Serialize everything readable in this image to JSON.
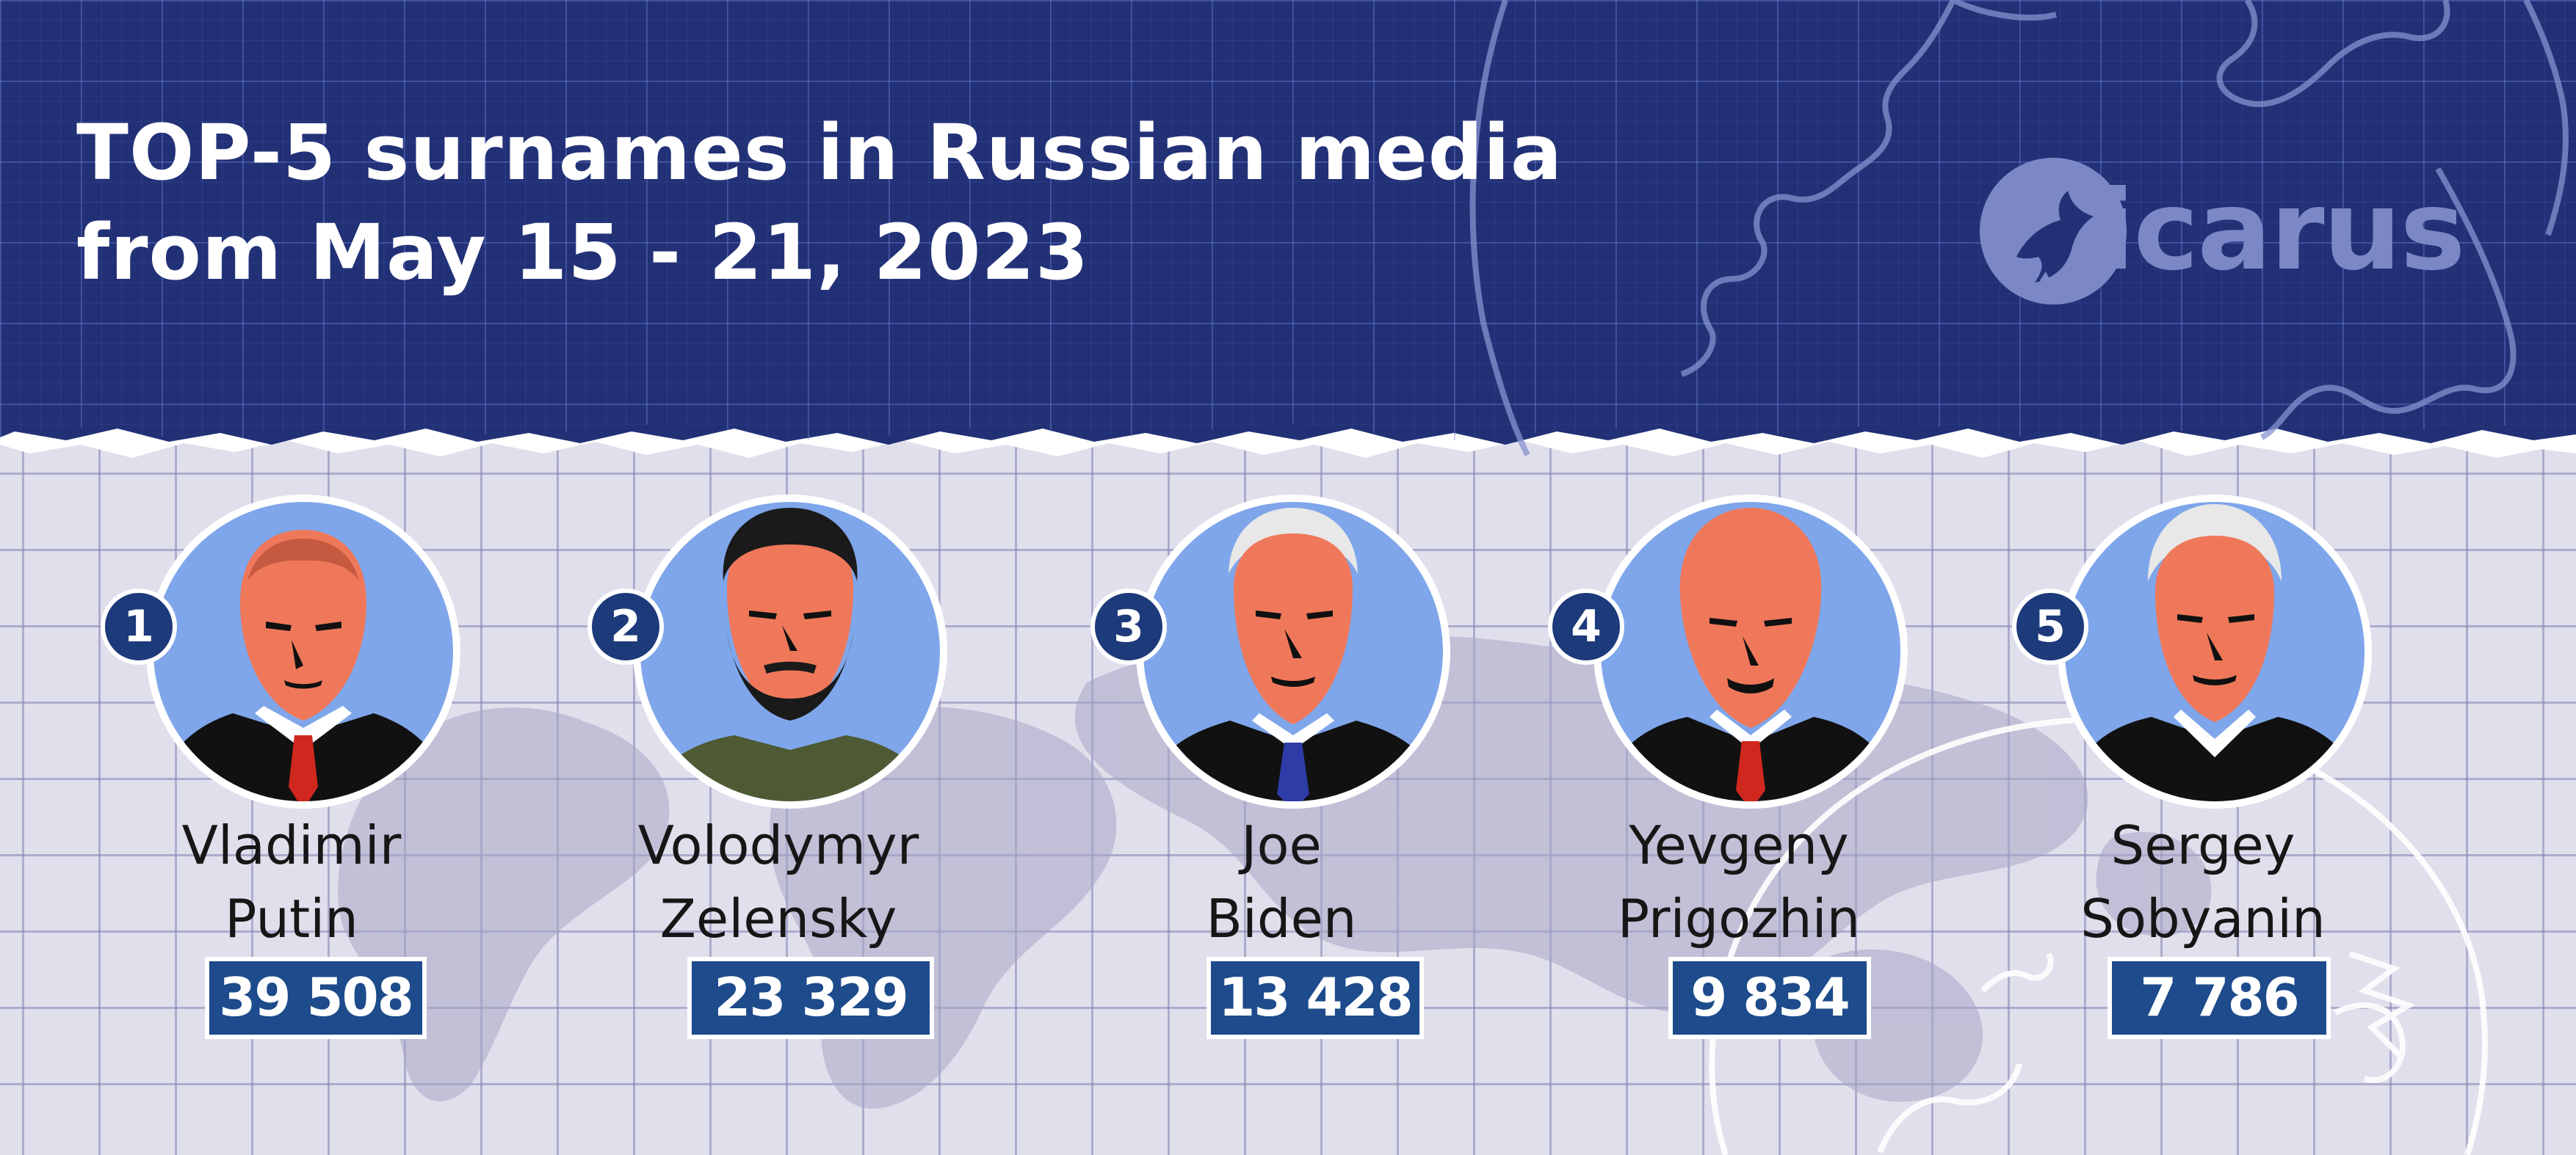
{
  "header": {
    "title_line1": "TOP-5 surnames in Russian media",
    "title_line2": "from May 15 - 21, 2023"
  },
  "logo": {
    "text": "icarus",
    "icon": "dove-logo-icon"
  },
  "people": [
    {
      "rank": "1",
      "first": "Vladimir",
      "last": "Putin",
      "count": "39 508"
    },
    {
      "rank": "2",
      "first": "Volodymyr",
      "last": "Zelensky",
      "count": "23 329"
    },
    {
      "rank": "3",
      "first": "Joe",
      "last": "Biden",
      "count": "13 428"
    },
    {
      "rank": "4",
      "first": "Yevgeny",
      "last": "Prigozhin",
      "count": "9 834"
    },
    {
      "rank": "5",
      "first": "Sergey",
      "last": "Sobyanin",
      "count": "7 786"
    }
  ],
  "colors": {
    "header_navy": "#223176",
    "lower_background": "#e0dfec",
    "badge_blue": "#1d4b8b",
    "rank_blue": "#1d3a7a",
    "portrait_circle": "#7fa6ea",
    "skin_orange": "#f0785a",
    "tie_red": "#d0281e"
  }
}
